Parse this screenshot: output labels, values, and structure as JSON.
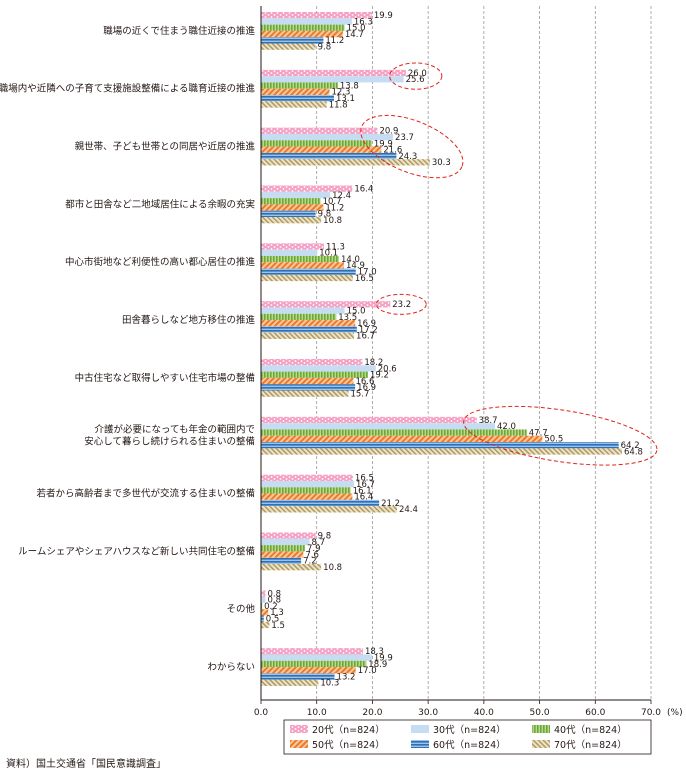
{
  "chart_data": {
    "type": "bar",
    "orientation": "horizontal",
    "title": "",
    "xlabel": "",
    "ylabel": "",
    "x_unit": "(%)",
    "xlim": [
      0,
      70
    ],
    "x_ticks": [
      "0.0",
      "10.0",
      "20.0",
      "30.0",
      "40.0",
      "50.0",
      "60.0",
      "70.0"
    ],
    "grid": "vertical dashed",
    "legend_position": "bottom",
    "categories": [
      [
        "職場の近くで住まう職住近接の推進"
      ],
      [
        "職場内や近隣への子育て支援施設整備による職育近接の推進"
      ],
      [
        "親世帯、子ども世帯との同居や近居の推進"
      ],
      [
        "都市と田舎など二地域居住による余暇の充実"
      ],
      [
        "中心市街地など利便性の高い都心居住の推進"
      ],
      [
        "田舎暮らしなど地方移住の推進"
      ],
      [
        "中古住宅など取得しやすい住宅市場の整備"
      ],
      [
        "介護が必要になっても年金の範囲内で",
        "安心して暮らし続けられる住まいの整備"
      ],
      [
        "若者から高齢者まで多世代が交流する住まいの整備"
      ],
      [
        "ルームシェアやシェアハウスなど新しい共同住宅の整備"
      ],
      [
        "その他"
      ],
      [
        "わからない"
      ]
    ],
    "series": [
      {
        "name": "20代（n=824）",
        "color": "#f4a1c4",
        "pattern": "dots",
        "values": [
          19.9,
          26.0,
          20.9,
          16.4,
          11.3,
          23.2,
          18.2,
          38.7,
          16.5,
          9.8,
          0.8,
          18.3
        ]
      },
      {
        "name": "30代（n=824）",
        "color": "#c6dcf2",
        "pattern": "solid",
        "values": [
          16.3,
          25.6,
          23.7,
          12.4,
          10.1,
          15.0,
          20.6,
          42.0,
          16.7,
          8.7,
          0.8,
          19.9
        ]
      },
      {
        "name": "40代（n=824）",
        "color": "#8fc058",
        "pattern": "vertical-stripes",
        "values": [
          15.0,
          13.8,
          19.9,
          10.7,
          14.0,
          13.5,
          19.2,
          47.7,
          16.1,
          7.9,
          0.2,
          18.9
        ]
      },
      {
        "name": "50代（n=824）",
        "color": "#f08a3a",
        "pattern": "diagonal-stripes",
        "values": [
          14.7,
          12.3,
          21.6,
          11.2,
          14.9,
          16.9,
          16.6,
          50.5,
          16.4,
          7.6,
          1.3,
          17.0
        ]
      },
      {
        "name": "60代（n=824）",
        "color": "#3d7fc4",
        "pattern": "horizontal-stripes",
        "values": [
          11.2,
          13.1,
          24.3,
          9.8,
          17.0,
          17.2,
          16.9,
          64.2,
          21.2,
          7.2,
          0.5,
          13.2
        ]
      },
      {
        "name": "70代（n=824）",
        "color": "#c8b27a",
        "pattern": "diagonal-hatch",
        "values": [
          9.8,
          11.8,
          30.3,
          10.8,
          16.5,
          16.7,
          15.7,
          64.8,
          24.4,
          10.8,
          1.5,
          10.3
        ]
      }
    ],
    "highlights": [
      {
        "category_index": 1,
        "series": [
          0,
          1
        ]
      },
      {
        "category_index": 2,
        "series": [
          0,
          1,
          2,
          3,
          4,
          5
        ]
      },
      {
        "category_index": 5,
        "series": [
          0
        ]
      },
      {
        "category_index": 7,
        "series": [
          0,
          1,
          2,
          3,
          4,
          5
        ]
      }
    ]
  },
  "source": "資料）国土交通省「国民意識調査」"
}
